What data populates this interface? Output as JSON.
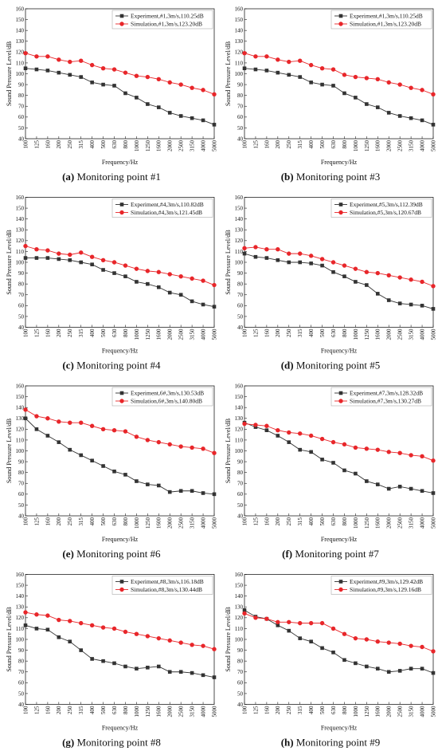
{
  "chart_data": [
    {
      "type": "line",
      "caption": {
        "label": "(a)",
        "text": "Monitoring point #1"
      },
      "xlabel": "Frequency/Hz",
      "ylabel": "Sound Pressure Level/dB",
      "categories": [
        "100",
        "125",
        "160",
        "200",
        "250",
        "315",
        "400",
        "500",
        "630",
        "800",
        "1000",
        "1250",
        "1600",
        "2000",
        "2500",
        "3150",
        "4000",
        "5000"
      ],
      "ylim": [
        40,
        160
      ],
      "yticks": [
        40,
        50,
        60,
        70,
        80,
        90,
        100,
        110,
        120,
        130,
        140,
        150,
        160
      ],
      "series": [
        {
          "name": "Experiment,#1,3m/s,110.25dB",
          "color": "#333333",
          "marker": "square",
          "values": [
            105,
            104,
            103,
            101,
            99,
            97,
            92,
            90,
            89,
            82,
            78,
            72,
            69,
            64,
            61,
            59,
            57,
            53
          ]
        },
        {
          "name": "Simulation,#1,3m/s,123.20dB",
          "color": "#e8262a",
          "marker": "circle",
          "values": [
            119,
            116,
            116,
            113,
            111,
            112,
            108,
            105,
            104,
            101,
            98,
            97,
            95,
            92,
            90,
            87,
            85,
            81
          ]
        }
      ]
    },
    {
      "type": "line",
      "caption": {
        "label": "(b)",
        "text": "Monitoring point #3"
      },
      "xlabel": "Frequency/Hz",
      "ylabel": "Sound Pressure Level/dB",
      "categories": [
        "100",
        "125",
        "160",
        "200",
        "250",
        "315",
        "400",
        "500",
        "630",
        "800",
        "1000",
        "1250",
        "1600",
        "2000",
        "2500",
        "3150",
        "4000",
        "5000"
      ],
      "ylim": [
        40,
        160
      ],
      "yticks": [
        40,
        50,
        60,
        70,
        80,
        90,
        100,
        110,
        120,
        130,
        140,
        150,
        160
      ],
      "series": [
        {
          "name": "Experiment,#1,3m/s,110.25dB",
          "color": "#333333",
          "marker": "square",
          "values": [
            105,
            104,
            103,
            101,
            99,
            97,
            92,
            90,
            89,
            82,
            78,
            72,
            69,
            64,
            61,
            59,
            57,
            53
          ]
        },
        {
          "name": "Simulation,#1,3m/s,123.20dB",
          "color": "#e8262a",
          "marker": "circle",
          "values": [
            119,
            116,
            116,
            113,
            111,
            112,
            108,
            105,
            104,
            99,
            97,
            96,
            95,
            92,
            90,
            87,
            85,
            81
          ]
        }
      ]
    },
    {
      "type": "line",
      "caption": {
        "label": "(c)",
        "text": "Monitoring point #4"
      },
      "xlabel": "Frequency/Hz",
      "ylabel": "Sound Pressure Level/dB",
      "categories": [
        "100",
        "125",
        "160",
        "200",
        "250",
        "315",
        "400",
        "500",
        "630",
        "800",
        "1000",
        "1250",
        "1600",
        "2000",
        "2500",
        "3150",
        "4000",
        "5000"
      ],
      "ylim": [
        40,
        160
      ],
      "yticks": [
        40,
        50,
        60,
        70,
        80,
        90,
        100,
        110,
        120,
        130,
        140,
        150,
        160
      ],
      "series": [
        {
          "name": "Experiment,#4,3m/s,110.82dB",
          "color": "#333333",
          "marker": "square",
          "values": [
            104,
            104,
            104,
            103,
            102,
            100,
            98,
            93,
            90,
            87,
            82,
            80,
            77,
            72,
            70,
            64,
            61,
            59
          ]
        },
        {
          "name": "Simulation,#4,3m/s,121.45dB",
          "color": "#e8262a",
          "marker": "circle",
          "values": [
            115,
            112,
            111,
            108,
            107,
            109,
            105,
            102,
            100,
            97,
            94,
            92,
            91,
            89,
            87,
            85,
            83,
            79
          ]
        }
      ]
    },
    {
      "type": "line",
      "caption": {
        "label": "(d)",
        "text": "Monitoring point #5"
      },
      "xlabel": "Frequency/Hz",
      "ylabel": "Sound Pressure Level/dB",
      "categories": [
        "100",
        "125",
        "160",
        "200",
        "250",
        "315",
        "400",
        "500",
        "630",
        "800",
        "1000",
        "1250",
        "1600",
        "2000",
        "2500",
        "3150",
        "4000",
        "5000"
      ],
      "ylim": [
        40,
        160
      ],
      "yticks": [
        40,
        50,
        60,
        70,
        80,
        90,
        100,
        110,
        120,
        130,
        140,
        150,
        160
      ],
      "series": [
        {
          "name": "Experiment,#5,3m/s,112.39dB",
          "color": "#333333",
          "marker": "square",
          "values": [
            108,
            105,
            104,
            102,
            100,
            100,
            99,
            97,
            91,
            87,
            82,
            79,
            71,
            65,
            62,
            61,
            60,
            57
          ]
        },
        {
          "name": "Simulation,#5,3m/s,120.67dB",
          "color": "#e8262a",
          "marker": "circle",
          "values": [
            113,
            114,
            112,
            112,
            108,
            108,
            106,
            103,
            100,
            97,
            94,
            91,
            90,
            88,
            86,
            84,
            82,
            78
          ]
        }
      ]
    },
    {
      "type": "line",
      "caption": {
        "label": "(e)",
        "text": "Monitoring point #6"
      },
      "xlabel": "Frequency/Hz",
      "ylabel": "Sound Pressure Level/dB",
      "categories": [
        "100",
        "125",
        "160",
        "200",
        "250",
        "315",
        "400",
        "500",
        "630",
        "800",
        "1000",
        "1250",
        "1600",
        "2000",
        "2500",
        "3150",
        "4000",
        "5000"
      ],
      "ylim": [
        40,
        160
      ],
      "yticks": [
        40,
        50,
        60,
        70,
        80,
        90,
        100,
        110,
        120,
        130,
        140,
        150,
        160
      ],
      "series": [
        {
          "name": "Experiment,6#,3m/s,130.53dB",
          "color": "#333333",
          "marker": "square",
          "values": [
            130,
            120,
            114,
            108,
            101,
            96,
            91,
            86,
            81,
            78,
            72,
            69,
            68,
            62,
            63,
            63,
            61,
            60
          ]
        },
        {
          "name": "Simulation,6#,3m/s,140.80dB",
          "color": "#e8262a",
          "marker": "circle",
          "values": [
            138,
            132,
            130,
            127,
            126,
            126,
            123,
            120,
            119,
            118,
            113,
            110,
            108,
            106,
            104,
            103,
            102,
            98
          ]
        }
      ]
    },
    {
      "type": "line",
      "caption": {
        "label": "(f)",
        "text": "Monitoring point #7"
      },
      "xlabel": "Frequency/Hz",
      "ylabel": "Sound Pressure Level/dB",
      "categories": [
        "100",
        "125",
        "160",
        "200",
        "250",
        "315",
        "400",
        "500",
        "630",
        "800",
        "1000",
        "1250",
        "1600",
        "2000",
        "2500",
        "3150",
        "4000",
        "5000"
      ],
      "ylim": [
        40,
        160
      ],
      "yticks": [
        40,
        50,
        60,
        70,
        80,
        90,
        100,
        110,
        120,
        130,
        140,
        150,
        160
      ],
      "series": [
        {
          "name": "Experiment,#7,3m/s,128.32dB",
          "color": "#333333",
          "marker": "square",
          "values": [
            126,
            122,
            119,
            114,
            108,
            101,
            99,
            92,
            89,
            82,
            79,
            72,
            69,
            65,
            67,
            65,
            63,
            61
          ]
        },
        {
          "name": "Simulation,#7,3m/s,130.27dB",
          "color": "#e8262a",
          "marker": "circle",
          "values": [
            125,
            124,
            123,
            119,
            117,
            116,
            114,
            111,
            108,
            106,
            103,
            102,
            101,
            99,
            98,
            96,
            95,
            91
          ]
        }
      ]
    },
    {
      "type": "line",
      "caption": {
        "label": "(g)",
        "text": "Monitoring point #8"
      },
      "xlabel": "Frequency/Hz",
      "ylabel": "Sound Pressure Level/dB",
      "categories": [
        "100",
        "125",
        "160",
        "200",
        "250",
        "315",
        "400",
        "500",
        "630",
        "800",
        "1000",
        "1250",
        "1600",
        "2000",
        "2500",
        "3150",
        "4000",
        "5000"
      ],
      "ylim": [
        40,
        160
      ],
      "yticks": [
        40,
        50,
        60,
        70,
        80,
        90,
        100,
        110,
        120,
        130,
        140,
        150,
        160
      ],
      "series": [
        {
          "name": "Experiment,#8,3m/s,116.18dB",
          "color": "#333333",
          "marker": "square",
          "values": [
            113,
            110,
            109,
            102,
            98,
            90,
            82,
            80,
            78,
            75,
            73,
            74,
            75,
            70,
            70,
            69,
            67,
            65
          ]
        },
        {
          "name": "Simulation,#8,3m/s,130.44dB",
          "color": "#e8262a",
          "marker": "circle",
          "values": [
            125,
            123,
            122,
            118,
            117,
            115,
            113,
            111,
            110,
            107,
            105,
            103,
            101,
            99,
            97,
            95,
            94,
            91
          ]
        }
      ]
    },
    {
      "type": "line",
      "caption": {
        "label": "(h)",
        "text": "Monitoring point #9"
      },
      "xlabel": "Frequency/Hz",
      "ylabel": "Sound Pressure Level/dB",
      "categories": [
        "100",
        "125",
        "160",
        "200",
        "250",
        "315",
        "400",
        "500",
        "630",
        "800",
        "1000",
        "1250",
        "1600",
        "2000",
        "2500",
        "3150",
        "4000",
        "5000"
      ],
      "ylim": [
        40,
        160
      ],
      "yticks": [
        40,
        50,
        60,
        70,
        80,
        90,
        100,
        110,
        120,
        130,
        140,
        150,
        160
      ],
      "series": [
        {
          "name": "Experiment,#9,3m/s,129.42dB",
          "color": "#333333",
          "marker": "square",
          "values": [
            127,
            121,
            119,
            113,
            108,
            101,
            98,
            92,
            88,
            81,
            78,
            75,
            73,
            70,
            71,
            73,
            73,
            69
          ]
        },
        {
          "name": "Simulation,#9,3m/s,129.16dB",
          "color": "#e8262a",
          "marker": "circle",
          "values": [
            124,
            120,
            119,
            116,
            116,
            115,
            115,
            115,
            110,
            105,
            101,
            100,
            98,
            97,
            96,
            94,
            93,
            89
          ]
        }
      ]
    }
  ]
}
